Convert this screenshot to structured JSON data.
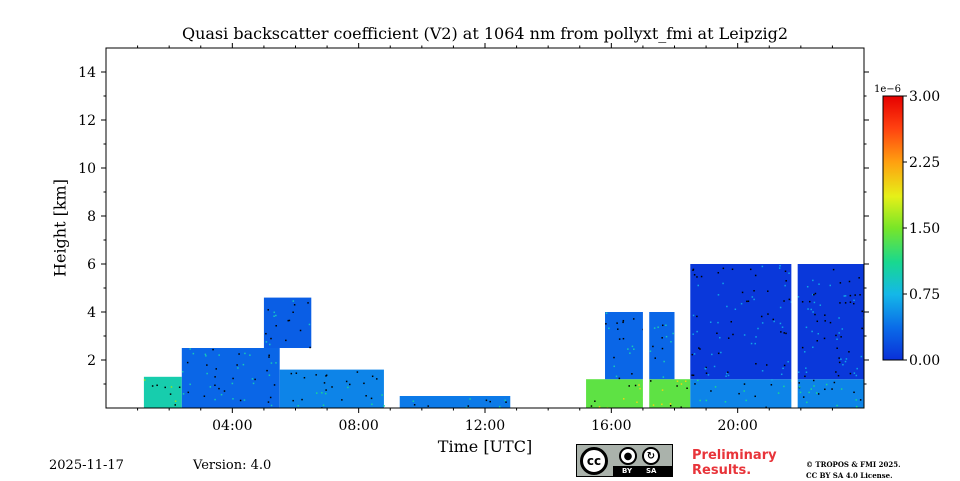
{
  "chart_data": {
    "type": "heatmap",
    "title": "Quasi backscatter coefficient (V2) at 1064 nm from pollyxt_fmi at Leipzig2",
    "xlabel": "Time [UTC]",
    "ylabel": "Height [km]",
    "xlim": [
      0,
      24
    ],
    "ylim": [
      0,
      15
    ],
    "x_ticks": [
      {
        "value": 4,
        "label": "04:00"
      },
      {
        "value": 8,
        "label": "08:00"
      },
      {
        "value": 12,
        "label": "12:00"
      },
      {
        "value": 16,
        "label": "16:00"
      },
      {
        "value": 20,
        "label": "20:00"
      }
    ],
    "y_ticks": [
      {
        "value": 2,
        "label": "2"
      },
      {
        "value": 4,
        "label": "4"
      },
      {
        "value": 6,
        "label": "6"
      },
      {
        "value": 8,
        "label": "8"
      },
      {
        "value": 10,
        "label": "10"
      },
      {
        "value": 12,
        "label": "12"
      },
      {
        "value": 14,
        "label": "14"
      }
    ],
    "colorbar": {
      "range": [
        0,
        3
      ],
      "exponent_label": "1e−6",
      "ticks": [
        {
          "value": 0,
          "label": "0.00"
        },
        {
          "value": 0.75,
          "label": "0.75"
        },
        {
          "value": 1.5,
          "label": "1.50"
        },
        {
          "value": 2.25,
          "label": "2.25"
        },
        {
          "value": 3,
          "label": "3.00"
        }
      ],
      "colormap": [
        "#0a30d8",
        "#0a6ae8",
        "#14b8e8",
        "#18d890",
        "#78e628",
        "#e6f018",
        "#ffa010",
        "#ff4010",
        "#e60000"
      ]
    },
    "regions": [
      {
        "t0": 1.2,
        "t1": 2.4,
        "h0": 0.0,
        "h1": 1.3,
        "value": 1.0
      },
      {
        "t0": 2.4,
        "t1": 5.5,
        "h0": 0.0,
        "h1": 2.5,
        "value": 0.35
      },
      {
        "t0": 5.0,
        "t1": 6.5,
        "h0": 2.5,
        "h1": 4.6,
        "value": 0.3
      },
      {
        "t0": 5.5,
        "t1": 8.8,
        "h0": 0.0,
        "h1": 1.6,
        "value": 0.5
      },
      {
        "t0": 9.3,
        "t1": 12.8,
        "h0": 0.0,
        "h1": 0.5,
        "value": 0.45
      },
      {
        "t0": 15.2,
        "t1": 18.5,
        "h0": 0.0,
        "h1": 1.2,
        "value": 1.4
      },
      {
        "t0": 15.8,
        "t1": 18.0,
        "h0": 1.2,
        "h1": 4.0,
        "value": 0.35
      },
      {
        "t0": 18.5,
        "t1": 24.0,
        "h0": 0.0,
        "h1": 1.2,
        "value": 0.5
      },
      {
        "t0": 18.5,
        "t1": 24.0,
        "h0": 1.2,
        "h1": 6.0,
        "value": 0.05
      }
    ],
    "profile_gaps": [
      {
        "t0": 17.0,
        "t1": 17.2
      },
      {
        "t0": 21.7,
        "t1": 21.9
      }
    ]
  },
  "footer": {
    "date": "2025-11-17",
    "version": "Version: 4.0",
    "preliminary_line1": "Preliminary",
    "preliminary_line2": "Results.",
    "copyright_line1": "© TROPOS & FMI 2025.",
    "copyright_line2": "CC BY SA 4.0 License."
  },
  "license_badge": {
    "cc_text": "cc",
    "by_text": "BY",
    "sa_text": "SA"
  }
}
